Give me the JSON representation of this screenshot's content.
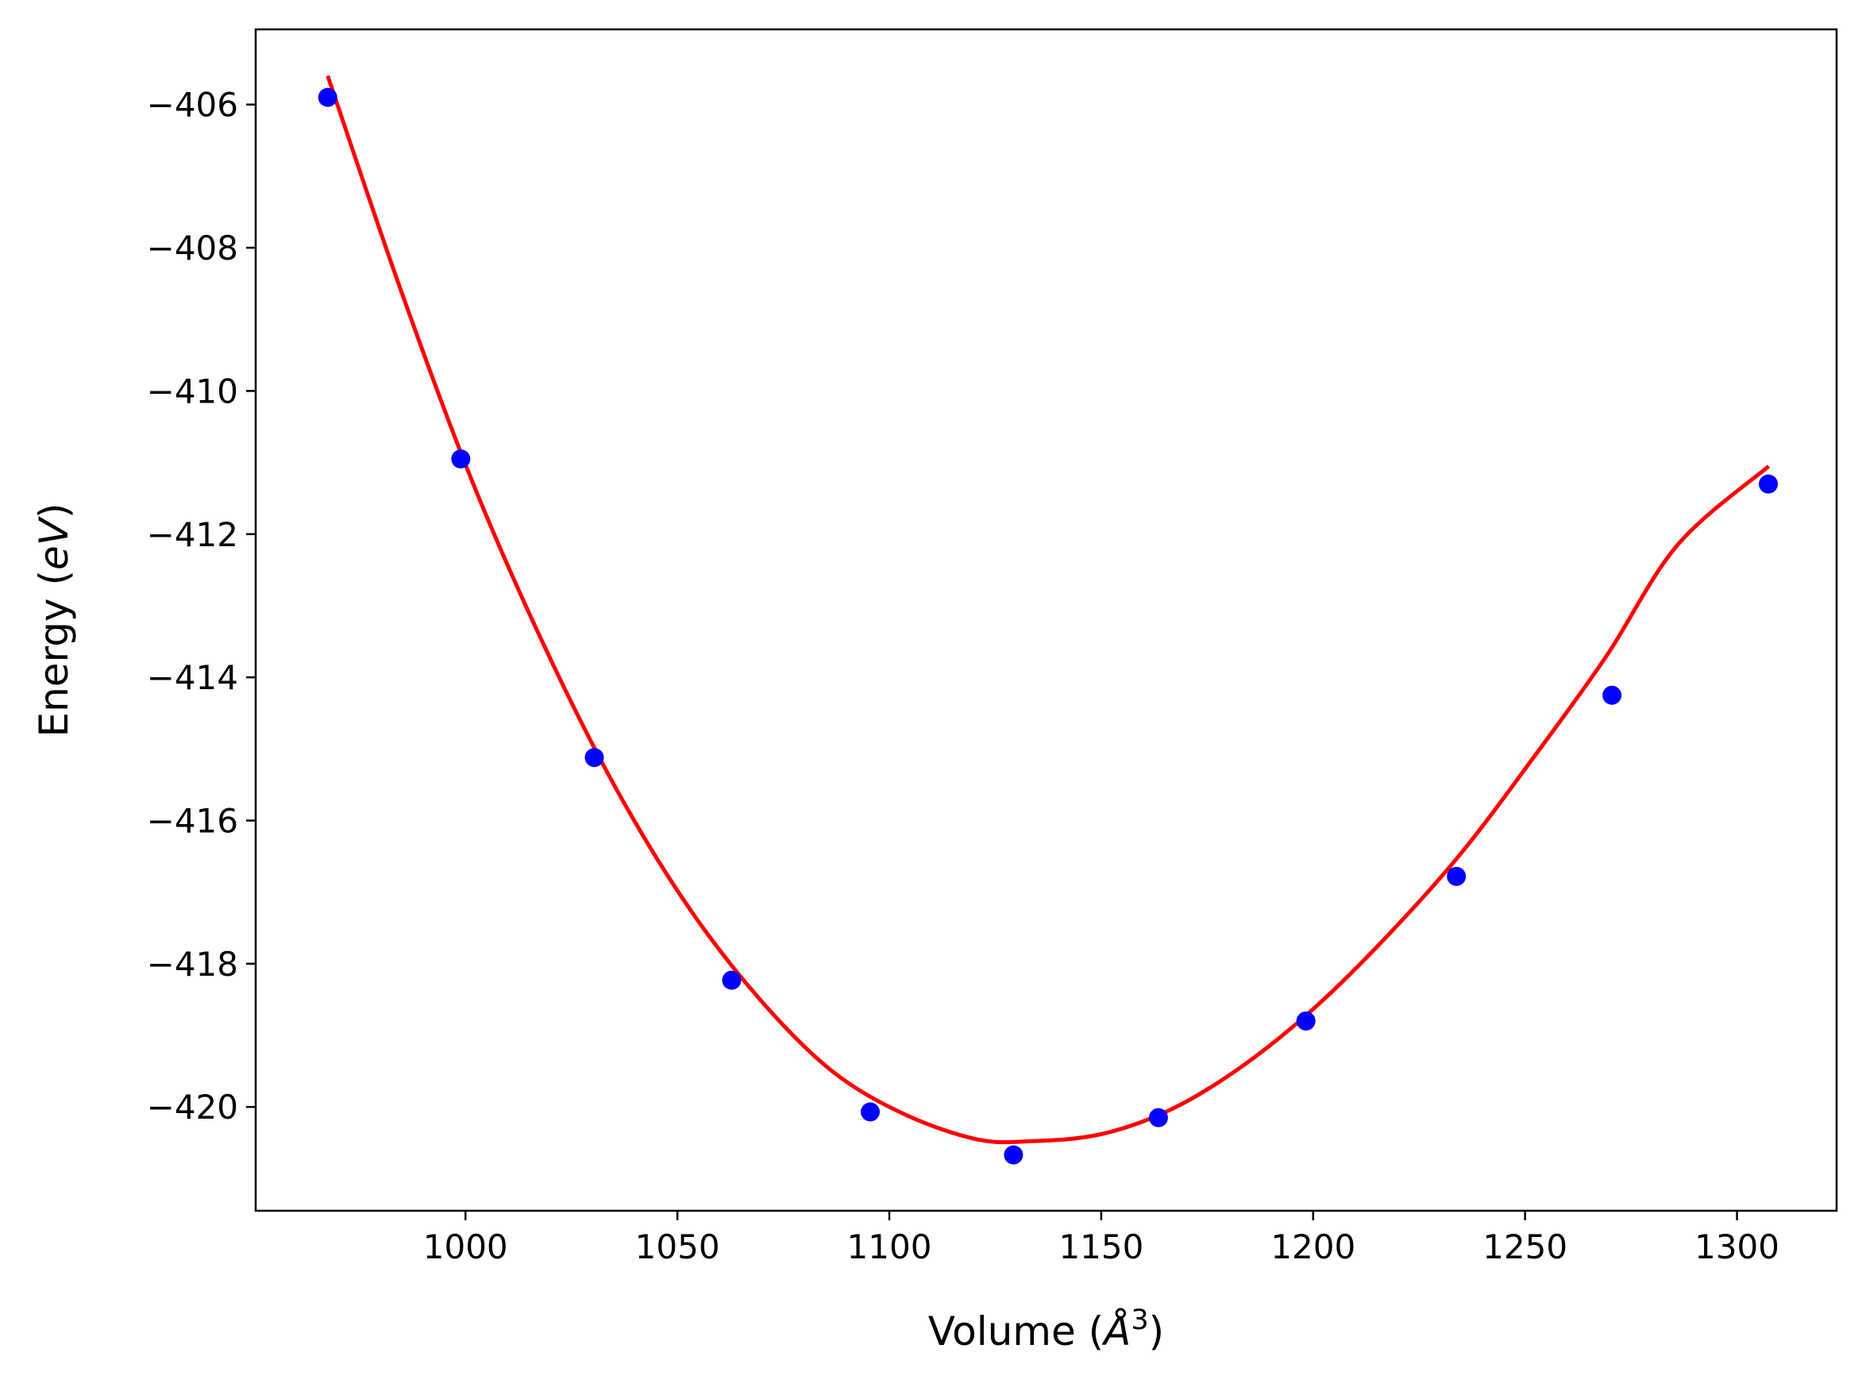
{
  "chart_data": {
    "type": "scatter",
    "title": "",
    "xlabel": {
      "prefix": "Volume (",
      "symbol": "Å",
      "superscript": "3",
      "suffix": ")"
    },
    "ylabel": {
      "prefix": "Energy (",
      "unit": "eV",
      "suffix": ")"
    },
    "xlim": [
      950.5,
      1323.5
    ],
    "ylim": [
      -421.45,
      -404.95
    ],
    "x_ticks": [
      1000,
      1050,
      1100,
      1150,
      1200,
      1250,
      1300
    ],
    "x_tick_labels": [
      "1000",
      "1050",
      "1100",
      "1150",
      "1200",
      "1250",
      "1300"
    ],
    "y_ticks": [
      -406,
      -408,
      -410,
      -412,
      -414,
      -416,
      -418,
      -420
    ],
    "y_tick_labels": [
      "−406",
      "−408",
      "−410",
      "−412",
      "−414",
      "−416",
      "−418",
      "−420"
    ],
    "grid": false,
    "legend": "none",
    "series": [
      {
        "kind": "points",
        "color": "#0000ff",
        "x": [
          967.5,
          998.9,
          1030.4,
          1062.8,
          1095.5,
          1129.3,
          1163.5,
          1198.3,
          1233.8,
          1270.5,
          1307.4
        ],
        "y": [
          -405.9,
          -410.95,
          -415.12,
          -418.23,
          -420.07,
          -420.67,
          -420.15,
          -418.8,
          -416.78,
          -414.25,
          -411.3
        ]
      },
      {
        "kind": "fit",
        "color": "#ff0000",
        "x": [
          967.5,
          984.5,
          1001.5,
          1018.5,
          1035.5,
          1052.5,
          1069.5,
          1086.5,
          1103.5,
          1120.5,
          1133.0,
          1150.0,
          1167.0,
          1184.0,
          1201.0,
          1218.0,
          1235.0,
          1252.0,
          1269.0,
          1286.0,
          1307.5
        ],
        "y": [
          -405.6,
          -408.55,
          -411.25,
          -413.55,
          -415.55,
          -417.2,
          -418.5,
          -419.5,
          -420.1,
          -420.45,
          -420.48,
          -420.38,
          -420.02,
          -419.4,
          -418.58,
          -417.58,
          -416.45,
          -415.12,
          -413.72,
          -412.15,
          -411.05
        ]
      }
    ]
  }
}
